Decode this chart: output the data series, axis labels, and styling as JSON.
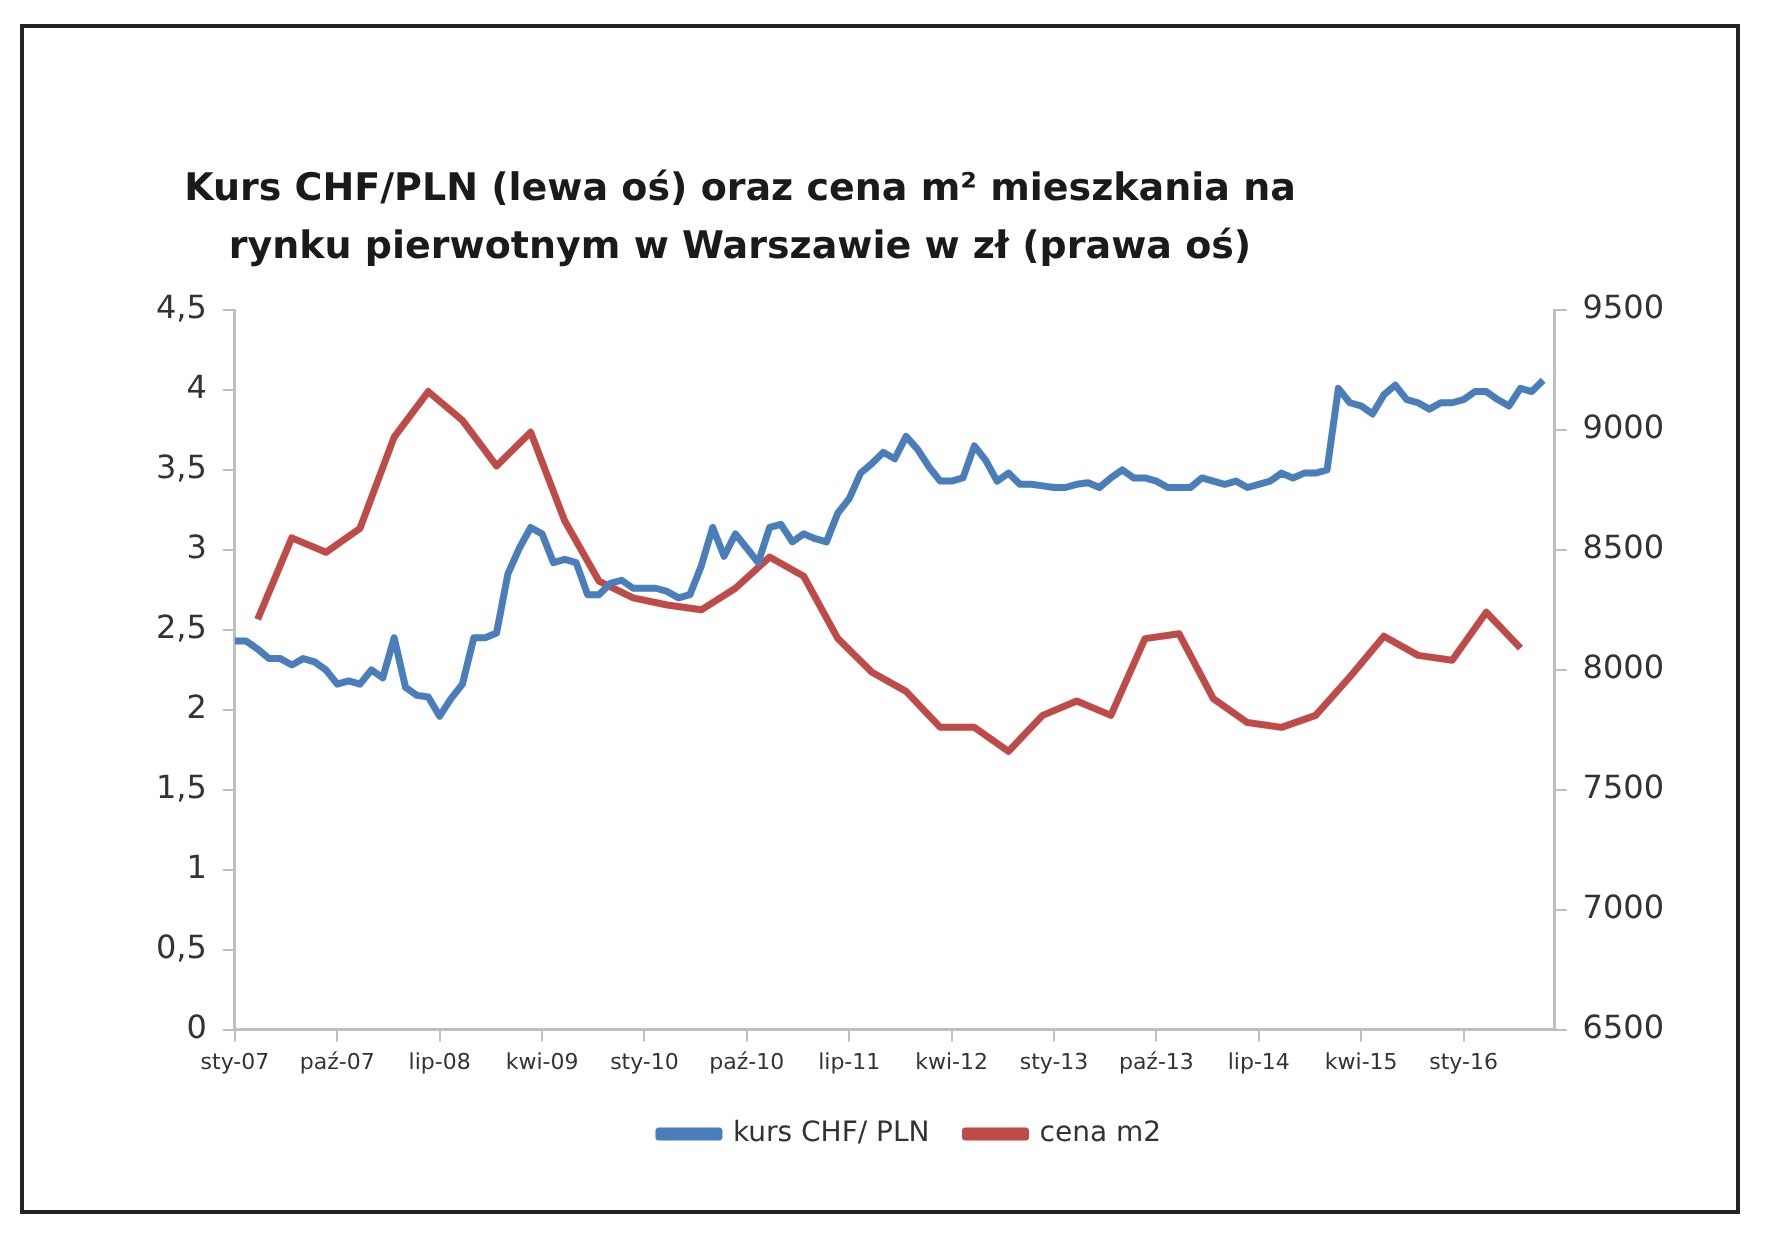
{
  "chart_data": {
    "type": "line",
    "title": "Kurs CHF/PLN (lewa oś) oraz cena m² mieszkania na rynku pierwotnym w Warszawie w zł (prawa oś)",
    "xlim": [
      "2007-01",
      "2016-09"
    ],
    "xticks": [
      {
        "value": "2007-01",
        "label": "sty-07"
      },
      {
        "value": "2007-10",
        "label": "paź-07"
      },
      {
        "value": "2008-07",
        "label": "lip-08"
      },
      {
        "value": "2009-04",
        "label": "kwi-09"
      },
      {
        "value": "2010-01",
        "label": "sty-10"
      },
      {
        "value": "2010-10",
        "label": "paź-10"
      },
      {
        "value": "2011-07",
        "label": "lip-11"
      },
      {
        "value": "2012-04",
        "label": "kwi-12"
      },
      {
        "value": "2013-01",
        "label": "sty-13"
      },
      {
        "value": "2013-10",
        "label": "paź-13"
      },
      {
        "value": "2014-07",
        "label": "lip-14"
      },
      {
        "value": "2015-04",
        "label": "kwi-15"
      },
      {
        "value": "2016-01",
        "label": "sty-16"
      }
    ],
    "ylim": [
      0,
      4.5
    ],
    "yticks": [
      0,
      {
        "value": 0.5,
        "label": "0,5"
      },
      1,
      {
        "value": 1.5,
        "label": "1,5"
      },
      2,
      {
        "value": 2.5,
        "label": "2,5"
      },
      3,
      {
        "value": 3.5,
        "label": "3,5"
      },
      4,
      {
        "value": 4.5,
        "label": "4,5"
      }
    ],
    "y2lim": [
      6500,
      9500
    ],
    "y2ticks": [
      6500,
      7000,
      7500,
      8000,
      8500,
      9000,
      9500
    ],
    "legend": "bottom",
    "marker": "none",
    "series": [
      {
        "name": "kurs CHF/ PLN",
        "color": "#4a7ebb",
        "axis": "y",
        "x": [
          "2007-01",
          "2007-02",
          "2007-03",
          "2007-04",
          "2007-05",
          "2007-06",
          "2007-07",
          "2007-08",
          "2007-09",
          "2007-10",
          "2007-11",
          "2007-12",
          "2008-01",
          "2008-02",
          "2008-03",
          "2008-04",
          "2008-05",
          "2008-06",
          "2008-07",
          "2008-08",
          "2008-09",
          "2008-10",
          "2008-11",
          "2008-12",
          "2009-01",
          "2009-02",
          "2009-03",
          "2009-04",
          "2009-05",
          "2009-06",
          "2009-07",
          "2009-08",
          "2009-09",
          "2009-10",
          "2009-11",
          "2009-12",
          "2010-01",
          "2010-02",
          "2010-03",
          "2010-04",
          "2010-05",
          "2010-06",
          "2010-07",
          "2010-08",
          "2010-09",
          "2010-10",
          "2010-11",
          "2010-12",
          "2011-01",
          "2011-02",
          "2011-03",
          "2011-04",
          "2011-05",
          "2011-06",
          "2011-07",
          "2011-08",
          "2011-09",
          "2011-10",
          "2011-11",
          "2011-12",
          "2012-01",
          "2012-02",
          "2012-03",
          "2012-04",
          "2012-05",
          "2012-06",
          "2012-07",
          "2012-08",
          "2012-09",
          "2012-10",
          "2012-11",
          "2012-12",
          "2013-01",
          "2013-02",
          "2013-03",
          "2013-04",
          "2013-05",
          "2013-06",
          "2013-07",
          "2013-08",
          "2013-09",
          "2013-10",
          "2013-11",
          "2013-12",
          "2014-01",
          "2014-02",
          "2014-03",
          "2014-04",
          "2014-05",
          "2014-06",
          "2014-07",
          "2014-08",
          "2014-09",
          "2014-10",
          "2014-11",
          "2014-12",
          "2015-01",
          "2015-02",
          "2015-03",
          "2015-04",
          "2015-05",
          "2015-06",
          "2015-07",
          "2015-08",
          "2015-09",
          "2015-10",
          "2015-11",
          "2015-12",
          "2016-01",
          "2016-02",
          "2016-03",
          "2016-04",
          "2016-05",
          "2016-06",
          "2016-07",
          "2016-08"
        ],
        "values": [
          2.43,
          2.43,
          2.38,
          2.32,
          2.32,
          2.28,
          2.32,
          2.3,
          2.25,
          2.16,
          2.18,
          2.16,
          2.25,
          2.2,
          2.45,
          2.14,
          2.09,
          2.08,
          1.96,
          2.07,
          2.16,
          2.45,
          2.45,
          2.48,
          2.85,
          3.01,
          3.14,
          3.1,
          2.92,
          2.94,
          2.92,
          2.72,
          2.72,
          2.79,
          2.81,
          2.76,
          2.76,
          2.76,
          2.74,
          2.7,
          2.72,
          2.9,
          3.14,
          2.96,
          3.1,
          3.01,
          2.92,
          3.14,
          3.16,
          3.05,
          3.1,
          3.07,
          3.05,
          3.23,
          3.32,
          3.48,
          3.54,
          3.61,
          3.57,
          3.71,
          3.63,
          3.52,
          3.43,
          3.43,
          3.45,
          3.65,
          3.56,
          3.43,
          3.48,
          3.41,
          3.41,
          3.4,
          3.39,
          3.39,
          3.41,
          3.42,
          3.39,
          3.45,
          3.5,
          3.45,
          3.45,
          3.43,
          3.39,
          3.39,
          3.39,
          3.45,
          3.43,
          3.41,
          3.43,
          3.39,
          3.41,
          3.43,
          3.48,
          3.45,
          3.48,
          3.48,
          3.5,
          4.01,
          3.92,
          3.9,
          3.85,
          3.97,
          4.03,
          3.94,
          3.92,
          3.88,
          3.92,
          3.92,
          3.94,
          3.99,
          3.99,
          3.94,
          3.9,
          4.01,
          3.99,
          4.06
        ]
      },
      {
        "name": "cena m2",
        "color": "#be4b48",
        "axis": "y2",
        "x": [
          "2007-03",
          "2007-06",
          "2007-09",
          "2007-12",
          "2008-03",
          "2008-06",
          "2008-09",
          "2008-12",
          "2009-03",
          "2009-06",
          "2009-09",
          "2009-12",
          "2010-03",
          "2010-06",
          "2010-09",
          "2010-12",
          "2011-03",
          "2011-06",
          "2011-09",
          "2011-12",
          "2012-03",
          "2012-06",
          "2012-09",
          "2012-12",
          "2013-03",
          "2013-06",
          "2013-09",
          "2013-12",
          "2014-03",
          "2014-06",
          "2014-09",
          "2014-12",
          "2015-03",
          "2015-06",
          "2015-09",
          "2015-12",
          "2016-03",
          "2016-06"
        ],
        "values": [
          8210,
          8550,
          8490,
          8590,
          8970,
          9160,
          9040,
          8850,
          8990,
          8620,
          8370,
          8300,
          8270,
          8250,
          8340,
          8470,
          8390,
          8130,
          7990,
          7910,
          7760,
          7760,
          7660,
          7810,
          7870,
          7810,
          8130,
          8150,
          7880,
          7780,
          7760,
          7810,
          7970,
          8140,
          8060,
          8040,
          8240,
          8090
        ]
      }
    ]
  }
}
